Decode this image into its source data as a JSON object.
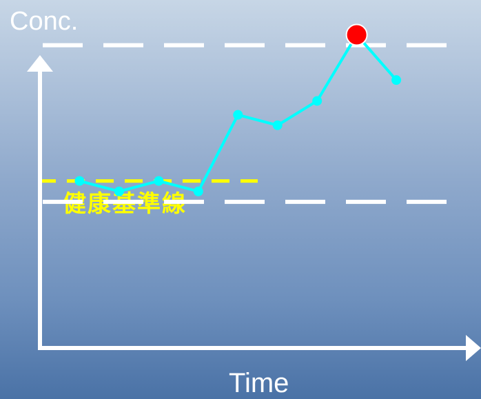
{
  "chart_data": {
    "type": "line",
    "ylabel": "Conc.",
    "xlabel": "Time",
    "baseline_label": "健康基準線",
    "xlim": [
      0,
      11
    ],
    "ylim": [
      0,
      10
    ],
    "series": [
      {
        "x": [
          1,
          2,
          3,
          4,
          5,
          6,
          7,
          8,
          9
        ],
        "y": [
          4.8,
          4.5,
          4.8,
          4.5,
          6.7,
          6.4,
          7.1,
          9.0,
          7.7
        ],
        "color": "#00ffff"
      }
    ],
    "highlight_point": {
      "x": 8,
      "y": 9.0,
      "color": "#ff0000"
    },
    "reference_lines": [
      {
        "y": 8.7,
        "color": "#ffffff",
        "style": "dashed"
      },
      {
        "y": 4.2,
        "color": "#ffffff",
        "style": "dashed"
      },
      {
        "y": 4.8,
        "color": "#ffff00",
        "style": "dashed",
        "x_end": 5.5
      }
    ]
  }
}
